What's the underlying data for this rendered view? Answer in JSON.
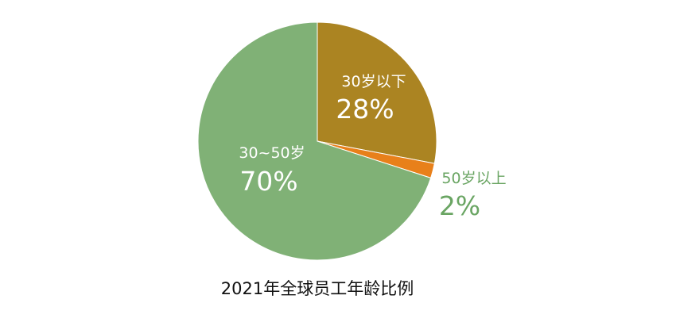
{
  "chart_data": {
    "type": "pie",
    "title": "2021年全球员工年龄比例",
    "slices": [
      {
        "label": "30岁以下",
        "value": 28,
        "value_label": "28%",
        "color": "#ab8422"
      },
      {
        "label": "50岁以上",
        "value": 2,
        "value_label": "2%",
        "color": "#e8801a"
      },
      {
        "label": "30~50岁",
        "value": 70,
        "value_label": "70%",
        "color": "#80b176"
      }
    ],
    "label_colors": {
      "inside": "#ffffff",
      "outside": "#6aa563"
    },
    "start_angle": "12 o'clock",
    "direction": "clockwise",
    "legend": "none"
  }
}
